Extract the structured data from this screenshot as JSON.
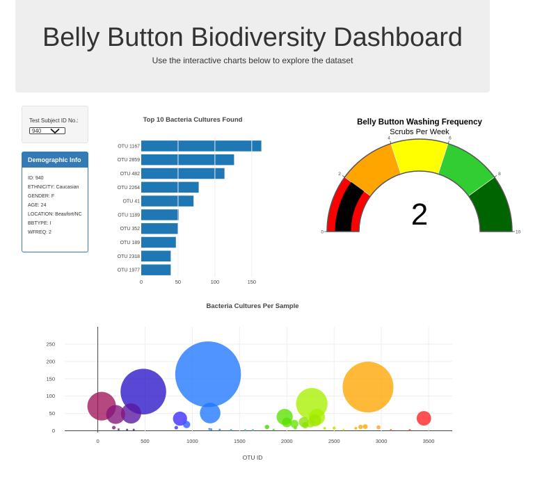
{
  "header": {
    "title": "Belly Button Biodiversity Dashboard",
    "subtitle": "Use the interactive charts below to explore the dataset"
  },
  "selector": {
    "label": "Test Subject ID No.:",
    "value": "940"
  },
  "demographics": {
    "title": "Demographic Info",
    "items": [
      "ID: 940",
      "ETHNICITY: Caucasian",
      "GENDER: F",
      "AGE: 24",
      "LOCATION: Beaufort/NC",
      "BBTYPE: I",
      "WFREQ: 2"
    ]
  },
  "colors": {
    "bar": "#1f77b4",
    "panel_header": "#337ab7",
    "gauge_needle_fill": "#ff0000"
  },
  "chart_data": [
    {
      "type": "bar",
      "orientation": "horizontal",
      "title": "Top 10 Bacteria Cultures Found",
      "categories": [
        "OTU 1167",
        "OTU 2859",
        "OTU 482",
        "OTU 2264",
        "OTU 41",
        "OTU 1189",
        "OTU 352",
        "OTU 189",
        "OTU 2318",
        "OTU 1977"
      ],
      "values": [
        163,
        126,
        113,
        78,
        71,
        51,
        50,
        47,
        40,
        40
      ],
      "xticks": [
        0,
        50,
        100,
        150
      ],
      "xlim": [
        0,
        170
      ]
    },
    {
      "type": "gauge",
      "title": "Belly Button Washing Frequency",
      "subtitle": "Scrubs Per Week",
      "value": 2,
      "value_label": "2",
      "range": [
        0,
        10
      ],
      "ticks": [
        0,
        2,
        4,
        6,
        8,
        10
      ],
      "steps": [
        {
          "range": [
            0,
            2
          ],
          "color": "#ff0000"
        },
        {
          "range": [
            2,
            4
          ],
          "color": "#ffa500"
        },
        {
          "range": [
            4,
            6
          ],
          "color": "#ffff00"
        },
        {
          "range": [
            6,
            8
          ],
          "color": "#32cd32"
        },
        {
          "range": [
            8,
            10
          ],
          "color": "#006400"
        }
      ],
      "bar_color": "#000000"
    },
    {
      "type": "scatter",
      "subtype": "bubble",
      "title": "Bacteria Cultures Per Sample",
      "xlabel": "OTU ID",
      "xlim": [
        -350,
        3750
      ],
      "ylim": [
        -5,
        300
      ],
      "xticks": [
        0,
        500,
        1000,
        1500,
        2000,
        2500,
        3000,
        3500
      ],
      "yticks": [
        0,
        50,
        100,
        150,
        200,
        250
      ],
      "points": [
        {
          "x": 1167,
          "y": 163,
          "color": "#1f77ff"
        },
        {
          "x": 2859,
          "y": 126,
          "color": "#ffa500"
        },
        {
          "x": 482,
          "y": 113,
          "color": "#2a14c8"
        },
        {
          "x": 2264,
          "y": 78,
          "color": "#a8f000"
        },
        {
          "x": 41,
          "y": 71,
          "color": "#a0145a"
        },
        {
          "x": 1189,
          "y": 51,
          "color": "#1f77ff"
        },
        {
          "x": 352,
          "y": 50,
          "color": "#5a14a0"
        },
        {
          "x": 189,
          "y": 47,
          "color": "#821478"
        },
        {
          "x": 2318,
          "y": 40,
          "color": "#a8f000"
        },
        {
          "x": 1977,
          "y": 40,
          "color": "#5ae000"
        },
        {
          "x": 3450,
          "y": 36,
          "color": "#ff2020"
        },
        {
          "x": 870,
          "y": 35,
          "color": "#3a2aff"
        },
        {
          "x": 2000,
          "y": 24,
          "color": "#5ae000"
        },
        {
          "x": 2180,
          "y": 25,
          "color": "#8ae000"
        },
        {
          "x": 2080,
          "y": 20,
          "color": "#6ae000"
        },
        {
          "x": 2250,
          "y": 22,
          "color": "#a0e800"
        },
        {
          "x": 2300,
          "y": 30,
          "color": "#a0e800"
        },
        {
          "x": 940,
          "y": 18,
          "color": "#2a5aff"
        },
        {
          "x": 2195,
          "y": 16,
          "color": "#8ae000"
        },
        {
          "x": 1790,
          "y": 11,
          "color": "#4ad000"
        },
        {
          "x": 2780,
          "y": 11,
          "color": "#ffa500"
        },
        {
          "x": 2830,
          "y": 12,
          "color": "#ffa500"
        },
        {
          "x": 2970,
          "y": 10,
          "color": "#ffa020"
        },
        {
          "x": 2730,
          "y": 7,
          "color": "#ffa500"
        },
        {
          "x": 830,
          "y": 9,
          "color": "#3a2aff"
        },
        {
          "x": 170,
          "y": 9,
          "color": "#821478"
        },
        {
          "x": 2500,
          "y": 8,
          "color": "#c8e000"
        },
        {
          "x": 2090,
          "y": 8,
          "color": "#6ae000"
        },
        {
          "x": 2400,
          "y": 7,
          "color": "#b0e800"
        },
        {
          "x": 1180,
          "y": 5,
          "color": "#1f77ff"
        },
        {
          "x": 1200,
          "y": 4,
          "color": "#1f77ff"
        },
        {
          "x": 220,
          "y": 4,
          "color": "#821478"
        },
        {
          "x": 310,
          "y": 3,
          "color": "#5a14a0"
        },
        {
          "x": 380,
          "y": 3,
          "color": "#5a14a0"
        },
        {
          "x": 1290,
          "y": 3,
          "color": "#2a7aff"
        },
        {
          "x": 1410,
          "y": 2,
          "color": "#2a9aff"
        },
        {
          "x": 1560,
          "y": 2,
          "color": "#3ad0a0"
        },
        {
          "x": 1640,
          "y": 2,
          "color": "#3ad080"
        },
        {
          "x": 1860,
          "y": 3,
          "color": "#4ad040"
        },
        {
          "x": 2600,
          "y": 3,
          "color": "#e0e000"
        },
        {
          "x": 3100,
          "y": 2,
          "color": "#ff6030"
        },
        {
          "x": 3300,
          "y": 2,
          "color": "#ff4030"
        }
      ]
    }
  ]
}
